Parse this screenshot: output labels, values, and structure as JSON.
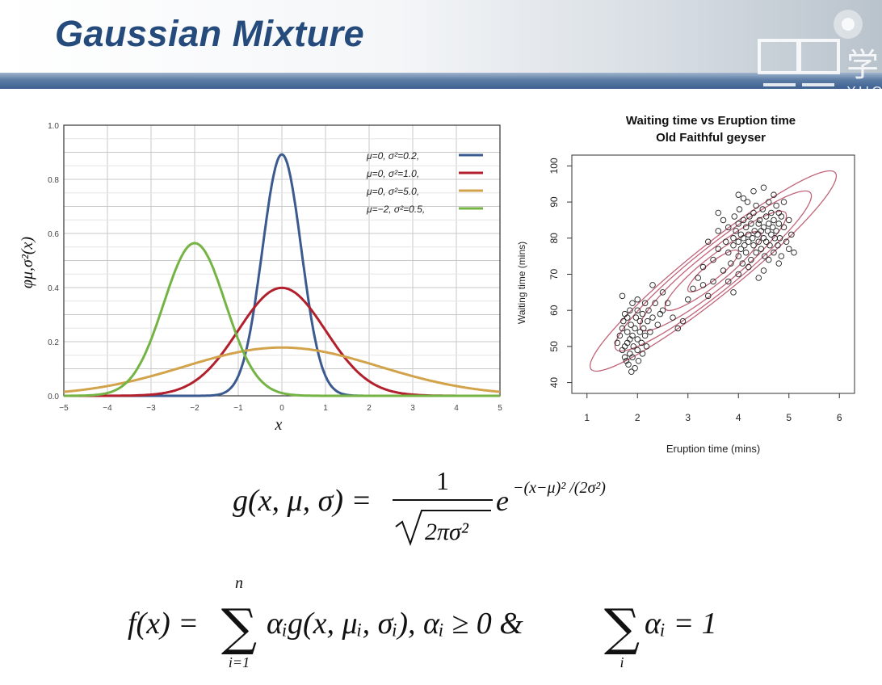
{
  "slide": {
    "title": "Gaussian Mixture",
    "logo": {
      "glyph": "学",
      "text": "XUC"
    }
  },
  "chart_data": [
    {
      "type": "line",
      "title": "",
      "xlabel": "x",
      "ylabel": "φμ,σ²(x)",
      "xlim": [
        -5,
        5
      ],
      "ylim": [
        0,
        1.0
      ],
      "xticks": [
        "−5",
        "−4",
        "−3",
        "−2",
        "−1",
        "0",
        "1",
        "2",
        "3",
        "4",
        "5"
      ],
      "yticks": [
        "0.0",
        "0.2",
        "0.4",
        "0.6",
        "0.8",
        "1.0"
      ],
      "grid": true,
      "legend": "top-right",
      "series": [
        {
          "name": "μ=0,   σ²=0.2,",
          "mu": 0,
          "variance": 0.2,
          "color": "#3b5a8f"
        },
        {
          "name": "μ=0,   σ²=1.0,",
          "mu": 0,
          "variance": 1.0,
          "color": "#b1202c"
        },
        {
          "name": "μ=0,   σ²=5.0,",
          "mu": 0,
          "variance": 5.0,
          "color": "#d2a34a"
        },
        {
          "name": "μ=−2,  σ²=0.5,",
          "mu": -2,
          "variance": 0.5,
          "color": "#74b444"
        }
      ]
    },
    {
      "type": "scatter",
      "title": "Waiting time vs Eruption time",
      "subtitle": "Old Faithful geyser",
      "xlabel": "Eruption time (mins)",
      "ylabel": "Waiting time (mins)",
      "xlim": [
        1,
        6
      ],
      "ylim": [
        40,
        100
      ],
      "xticks": [
        "1",
        "2",
        "3",
        "4",
        "5",
        "6"
      ],
      "yticks": [
        "40",
        "50",
        "60",
        "70",
        "80",
        "90",
        "100"
      ],
      "point_color": "#222222",
      "contour_color": "#c06478",
      "points": [
        [
          1.6,
          51
        ],
        [
          1.65,
          53
        ],
        [
          1.7,
          49
        ],
        [
          1.7,
          55
        ],
        [
          1.72,
          57
        ],
        [
          1.75,
          50
        ],
        [
          1.75,
          47
        ],
        [
          1.78,
          46
        ],
        [
          1.8,
          54
        ],
        [
          1.8,
          51
        ],
        [
          1.8,
          58
        ],
        [
          1.82,
          45
        ],
        [
          1.85,
          52
        ],
        [
          1.85,
          48
        ],
        [
          1.85,
          60
        ],
        [
          1.87,
          56
        ],
        [
          1.9,
          53
        ],
        [
          1.9,
          47
        ],
        [
          1.9,
          62
        ],
        [
          1.92,
          50
        ],
        [
          1.95,
          44
        ],
        [
          1.95,
          55
        ],
        [
          1.97,
          58
        ],
        [
          2.0,
          52
        ],
        [
          2.0,
          49
        ],
        [
          2.0,
          60
        ],
        [
          2.02,
          46
        ],
        [
          2.05,
          54
        ],
        [
          2.05,
          57
        ],
        [
          2.08,
          51
        ],
        [
          2.1,
          59
        ],
        [
          2.1,
          48
        ],
        [
          2.12,
          55
        ],
        [
          2.15,
          53
        ],
        [
          2.15,
          62
        ],
        [
          2.18,
          50
        ],
        [
          2.2,
          57
        ],
        [
          2.22,
          60
        ],
        [
          2.25,
          54
        ],
        [
          2.3,
          58
        ],
        [
          2.35,
          62
        ],
        [
          2.4,
          56
        ],
        [
          2.45,
          59
        ],
        [
          2.5,
          60
        ],
        [
          1.7,
          64
        ],
        [
          1.75,
          59
        ],
        [
          1.88,
          43
        ],
        [
          2.0,
          63
        ],
        [
          2.3,
          67
        ],
        [
          2.5,
          65
        ],
        [
          2.6,
          62
        ],
        [
          2.7,
          58
        ],
        [
          2.8,
          55
        ],
        [
          2.9,
          57
        ],
        [
          3.0,
          63
        ],
        [
          3.1,
          66
        ],
        [
          3.2,
          69
        ],
        [
          3.3,
          72
        ],
        [
          3.4,
          64
        ],
        [
          3.5,
          74
        ],
        [
          3.5,
          68
        ],
        [
          3.6,
          77
        ],
        [
          3.6,
          82
        ],
        [
          3.7,
          71
        ],
        [
          3.7,
          85
        ],
        [
          3.75,
          79
        ],
        [
          3.8,
          76
        ],
        [
          3.8,
          83
        ],
        [
          3.85,
          73
        ],
        [
          3.9,
          80
        ],
        [
          3.9,
          78
        ],
        [
          3.92,
          86
        ],
        [
          3.95,
          82
        ],
        [
          4.0,
          75
        ],
        [
          4.0,
          79
        ],
        [
          4.0,
          84
        ],
        [
          4.02,
          88
        ],
        [
          4.05,
          77
        ],
        [
          4.05,
          81
        ],
        [
          4.08,
          73
        ],
        [
          4.1,
          80
        ],
        [
          4.1,
          85
        ],
        [
          4.12,
          78
        ],
        [
          4.15,
          83
        ],
        [
          4.15,
          76
        ],
        [
          4.18,
          90
        ],
        [
          4.2,
          81
        ],
        [
          4.2,
          79
        ],
        [
          4.22,
          86
        ],
        [
          4.25,
          74
        ],
        [
          4.25,
          84
        ],
        [
          4.28,
          80
        ],
        [
          4.3,
          78
        ],
        [
          4.3,
          87
        ],
        [
          4.32,
          82
        ],
        [
          4.35,
          76
        ],
        [
          4.35,
          89
        ],
        [
          4.38,
          81
        ],
        [
          4.4,
          79
        ],
        [
          4.4,
          84
        ],
        [
          4.42,
          85
        ],
        [
          4.45,
          77
        ],
        [
          4.45,
          82
        ],
        [
          4.48,
          88
        ],
        [
          4.5,
          80
        ],
        [
          4.5,
          83
        ],
        [
          4.52,
          75
        ],
        [
          4.55,
          86
        ],
        [
          4.55,
          79
        ],
        [
          4.58,
          82
        ],
        [
          4.6,
          90
        ],
        [
          4.6,
          84
        ],
        [
          4.62,
          78
        ],
        [
          4.65,
          81
        ],
        [
          4.65,
          87
        ],
        [
          4.68,
          83
        ],
        [
          4.7,
          76
        ],
        [
          4.7,
          85
        ],
        [
          4.72,
          80
        ],
        [
          4.75,
          89
        ],
        [
          4.75,
          82
        ],
        [
          4.78,
          78
        ],
        [
          4.8,
          84
        ],
        [
          4.8,
          87
        ],
        [
          4.82,
          80
        ],
        [
          4.85,
          86
        ],
        [
          4.85,
          75
        ],
        [
          4.9,
          83
        ],
        [
          4.9,
          90
        ],
        [
          4.95,
          79
        ],
        [
          5.0,
          85
        ],
        [
          5.0,
          77
        ],
        [
          5.05,
          81
        ],
        [
          5.1,
          76
        ],
        [
          4.0,
          92
        ],
        [
          4.1,
          91
        ],
        [
          4.3,
          93
        ],
        [
          4.5,
          94
        ],
        [
          4.7,
          92
        ],
        [
          3.6,
          87
        ],
        [
          3.4,
          79
        ],
        [
          3.3,
          67
        ],
        [
          3.8,
          68
        ],
        [
          4.0,
          70
        ],
        [
          4.2,
          72
        ],
        [
          4.5,
          71
        ],
        [
          4.8,
          73
        ],
        [
          3.9,
          65
        ],
        [
          4.4,
          69
        ],
        [
          4.6,
          74
        ]
      ],
      "contours": [
        {
          "cx": 3.5,
          "cy": 70.9,
          "rx": 0.55,
          "ry": 4.0
        },
        {
          "cx": 3.5,
          "cy": 70.9,
          "rx": 1.05,
          "ry": 6.5
        },
        {
          "cx": 3.5,
          "cy": 70.9,
          "rx": 1.6,
          "ry": 9.0
        },
        {
          "cx": 3.5,
          "cy": 70.9,
          "rx": 2.15,
          "ry": 11.0
        },
        {
          "cx": 3.5,
          "cy": 70.9,
          "rx": 2.7,
          "ry": 12.5
        }
      ]
    }
  ],
  "formulas": {
    "g": {
      "lhs": "g(x, μ, σ) =",
      "numerator": "1",
      "radicand": "2πσ²",
      "exp_base": "e",
      "exponent": "−(x−μ)² /(2σ²)"
    },
    "f": {
      "lhs": "f(x) =",
      "sum_upper": "n",
      "sum_lower": "i=1",
      "term": "αᵢg(x, μᵢ, σᵢ), αᵢ ≥ 0 &",
      "sum2_lower": "i",
      "term2": "αᵢ = 1"
    }
  }
}
